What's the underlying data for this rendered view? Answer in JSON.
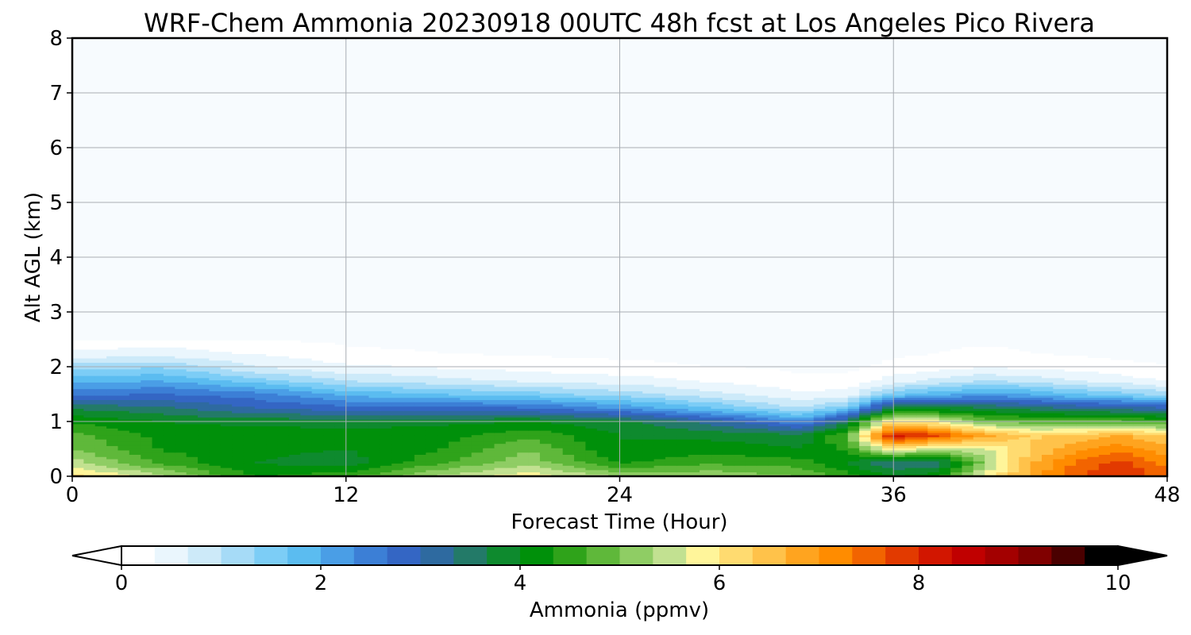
{
  "chart_data": {
    "type": "heatmap",
    "title": "WRF-Chem Ammonia  20230918 00UTC 48h fcst at Los Angeles Pico Rivera",
    "xlabel": "Forecast Time (Hour)",
    "ylabel": "Alt AGL (km)",
    "xlim": [
      0,
      48
    ],
    "ylim": [
      0,
      8
    ],
    "xticks": [
      0,
      12,
      24,
      36,
      48
    ],
    "yticks": [
      0,
      1,
      2,
      3,
      4,
      5,
      6,
      7,
      8
    ],
    "grid": true,
    "colorbar": {
      "label": "Ammonia  (ppmv)",
      "range": [
        0,
        10
      ],
      "ticks": [
        0,
        2,
        4,
        6,
        8,
        10
      ],
      "extend": "both",
      "orientation": "horizontal",
      "colors": [
        "#ffffff",
        "#eaf6fd",
        "#cdeaf9",
        "#a6dbf7",
        "#7ccdf6",
        "#5bbcf0",
        "#4a9ee6",
        "#3c7fd6",
        "#3466c4",
        "#2e6aa0",
        "#237a68",
        "#0e8a2e",
        "#00900a",
        "#2fa31a",
        "#5fb83a",
        "#8fcd64",
        "#c2e191",
        "#fff59a",
        "#ffdb70",
        "#ffc24a",
        "#ffa41f",
        "#ff8c00",
        "#f26400",
        "#e23a00",
        "#d21600",
        "#c00000",
        "#a30000",
        "#800000",
        "#4a0000",
        "#000000"
      ]
    },
    "z_grid": {
      "x": [
        0,
        4,
        8,
        12,
        16,
        20,
        24,
        28,
        32,
        34,
        36,
        38,
        40,
        42,
        44,
        46,
        48
      ],
      "y": [
        0,
        0.25,
        0.5,
        0.75,
        1.0,
        1.25,
        1.5,
        1.75,
        2.0,
        2.25,
        2.5
      ],
      "z": [
        [
          6.2,
          5.4,
          4.3,
          4.6,
          5.4,
          5.9,
          5.3,
          5.3,
          5.0,
          4.5,
          4.0,
          4.3,
          5.8,
          6.8,
          7.6,
          8.0,
          7.5
        ],
        [
          5.5,
          4.6,
          4.0,
          3.8,
          4.6,
          5.2,
          4.3,
          4.6,
          4.5,
          4.0,
          3.3,
          3.4,
          5.2,
          6.6,
          7.4,
          7.8,
          7.2
        ],
        [
          5.0,
          4.3,
          4.1,
          4.0,
          4.3,
          5.0,
          4.0,
          4.2,
          4.0,
          4.4,
          6.0,
          5.4,
          5.6,
          6.3,
          6.9,
          7.2,
          6.8
        ],
        [
          4.8,
          4.2,
          4.2,
          4.1,
          4.2,
          4.6,
          4.0,
          3.9,
          3.8,
          4.8,
          8.3,
          7.7,
          6.8,
          6.3,
          6.4,
          6.7,
          6.3
        ],
        [
          4.3,
          4.0,
          3.9,
          3.9,
          3.9,
          4.0,
          3.8,
          3.2,
          2.4,
          3.6,
          6.2,
          5.8,
          5.0,
          4.8,
          4.8,
          4.8,
          4.6
        ],
        [
          3.6,
          3.4,
          3.0,
          2.8,
          2.8,
          2.7,
          2.3,
          1.7,
          1.0,
          1.6,
          3.9,
          3.8,
          3.7,
          3.5,
          3.3,
          3.2,
          3.0
        ],
        [
          2.6,
          2.7,
          2.5,
          1.9,
          1.7,
          1.5,
          1.2,
          0.8,
          0.4,
          0.5,
          1.6,
          1.9,
          2.2,
          2.0,
          1.7,
          1.5,
          1.2
        ],
        [
          1.9,
          2.0,
          1.5,
          1.0,
          0.8,
          0.6,
          0.5,
          0.3,
          0.1,
          0.1,
          0.5,
          0.8,
          1.0,
          0.9,
          0.7,
          0.5,
          0.3
        ],
        [
          1.2,
          1.3,
          0.7,
          0.4,
          0.3,
          0.2,
          0.1,
          0.05,
          0.0,
          0.0,
          0.1,
          0.2,
          0.3,
          0.25,
          0.2,
          0.1,
          0.05
        ],
        [
          0.4,
          0.5,
          0.3,
          0.1,
          0.05,
          0.0,
          0.0,
          0.0,
          0.0,
          0.0,
          0.0,
          0.05,
          0.1,
          0.05,
          0.0,
          0.0,
          0.0
        ],
        [
          0.1,
          0.15,
          0.05,
          0.0,
          0.0,
          0.0,
          0.0,
          0.0,
          0.0,
          0.0,
          0.0,
          0.0,
          0.0,
          0.0,
          0.0,
          0.0,
          0.0
        ]
      ]
    }
  }
}
